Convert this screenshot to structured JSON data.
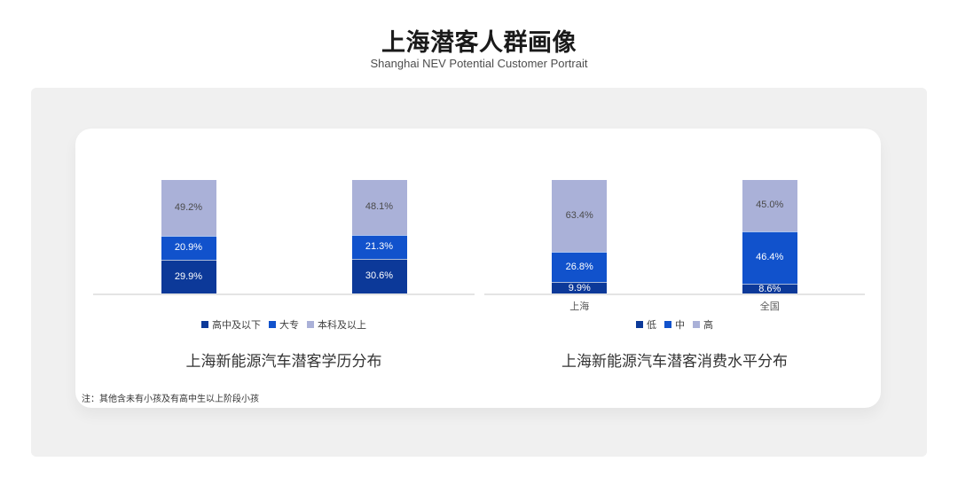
{
  "page": {
    "title": "上海潜客人群画像",
    "subtitle": "Shanghai NEV Potential Customer Portrait",
    "note": "注：其他含未有小孩及有高中生以上阶段小孩"
  },
  "colors": {
    "series_dark_blue": "#0C3999",
    "series_mid_blue": "#1152CC",
    "series_lavender": "#AAB1D8",
    "panel_background": "#F0F0F0",
    "card_background": "#FFFFFF",
    "axis_line": "#E4E4E4"
  },
  "chart_data": [
    {
      "type": "bar",
      "stacked": true,
      "title": "上海新能源汽车潜客学历分布",
      "categories": [
        "",
        ""
      ],
      "series": [
        {
          "name": "高中及以下",
          "color": "#0C3999",
          "label_color": "#FFFFFF",
          "values": [
            29.9,
            30.6
          ]
        },
        {
          "name": "大专",
          "color": "#1152CC",
          "label_color": "#FFFFFF",
          "values": [
            20.9,
            21.3
          ]
        },
        {
          "name": "本科及以上",
          "color": "#AAB1D8",
          "label_color": "#4A4A4A",
          "values": [
            49.2,
            48.1
          ]
        }
      ],
      "value_suffix": "%",
      "ylim": [
        0,
        100
      ],
      "legend_position": "bottom",
      "grid": false
    },
    {
      "type": "bar",
      "stacked": true,
      "title": "上海新能源汽车潜客消费水平分布",
      "categories": [
        "上海",
        "全国"
      ],
      "series": [
        {
          "name": "低",
          "color": "#0C3999",
          "label_color": "#FFFFFF",
          "values": [
            9.9,
            8.6
          ]
        },
        {
          "name": "中",
          "color": "#1152CC",
          "label_color": "#FFFFFF",
          "values": [
            26.8,
            46.4
          ]
        },
        {
          "name": "高",
          "color": "#AAB1D8",
          "label_color": "#4A4A4A",
          "values": [
            63.4,
            45.0
          ]
        }
      ],
      "value_suffix": "%",
      "ylim": [
        0,
        100
      ],
      "legend_position": "bottom",
      "grid": false
    }
  ]
}
